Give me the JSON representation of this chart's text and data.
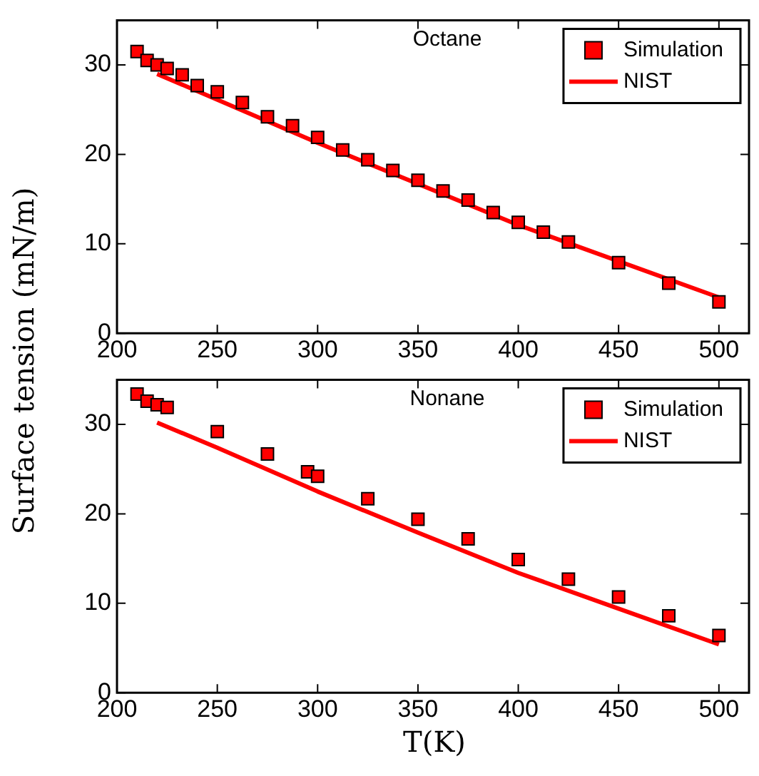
{
  "chart_data": [
    {
      "type": "scatter",
      "title": "Octane",
      "ylabel": "Surface tension (mN/m)",
      "xlim": [
        200,
        515
      ],
      "ylim": [
        0,
        35
      ],
      "xticks": [
        200,
        250,
        300,
        350,
        400,
        450,
        500
      ],
      "yticks": [
        0,
        10,
        20,
        30
      ],
      "legend": "top right",
      "series": [
        {
          "name": "Simulation",
          "type": "scatter",
          "marker": "square",
          "color": "#ff0000",
          "x": [
            210,
            215,
            220,
            225,
            232.5,
            240,
            250,
            262.5,
            275,
            287.5,
            300,
            312.5,
            325,
            337.5,
            350,
            362.5,
            375,
            387.5,
            400,
            412.5,
            425,
            450,
            475,
            500
          ],
          "values": [
            31.5,
            30.5,
            30.0,
            29.6,
            28.9,
            27.7,
            27.0,
            25.8,
            24.2,
            23.2,
            21.9,
            20.5,
            19.4,
            18.2,
            17.1,
            15.9,
            14.9,
            13.5,
            12.4,
            11.3,
            10.2,
            7.9,
            5.6,
            3.5
          ]
        },
        {
          "name": "NIST",
          "type": "line",
          "marker": "none",
          "color": "#ff0000",
          "x": [
            220,
            300,
            400,
            500
          ],
          "values": [
            29.0,
            21.3,
            12.1,
            4.0
          ]
        }
      ]
    },
    {
      "type": "scatter",
      "title": "Nonane",
      "xlabel": "T(K)",
      "xlim": [
        200,
        515
      ],
      "ylim": [
        0,
        35
      ],
      "xticks": [
        200,
        250,
        300,
        350,
        400,
        450,
        500
      ],
      "yticks": [
        0,
        10,
        20,
        30
      ],
      "legend": "top right",
      "series": [
        {
          "name": "Simulation",
          "type": "scatter",
          "marker": "square",
          "color": "#ff0000",
          "x": [
            210,
            215,
            220,
            225,
            250,
            275,
            295,
            300,
            325,
            350,
            375,
            400,
            425,
            450,
            475,
            500
          ],
          "values": [
            33.4,
            32.6,
            32.2,
            31.9,
            29.2,
            26.7,
            24.7,
            24.2,
            21.7,
            19.4,
            17.2,
            14.9,
            12.7,
            10.7,
            8.6,
            6.4
          ]
        },
        {
          "name": "NIST",
          "type": "line",
          "marker": "none",
          "color": "#ff0000",
          "x": [
            220,
            250,
            300,
            350,
            400,
            450,
            500
          ],
          "values": [
            30.2,
            27.4,
            22.5,
            17.9,
            13.4,
            9.4,
            5.4
          ]
        }
      ]
    }
  ]
}
